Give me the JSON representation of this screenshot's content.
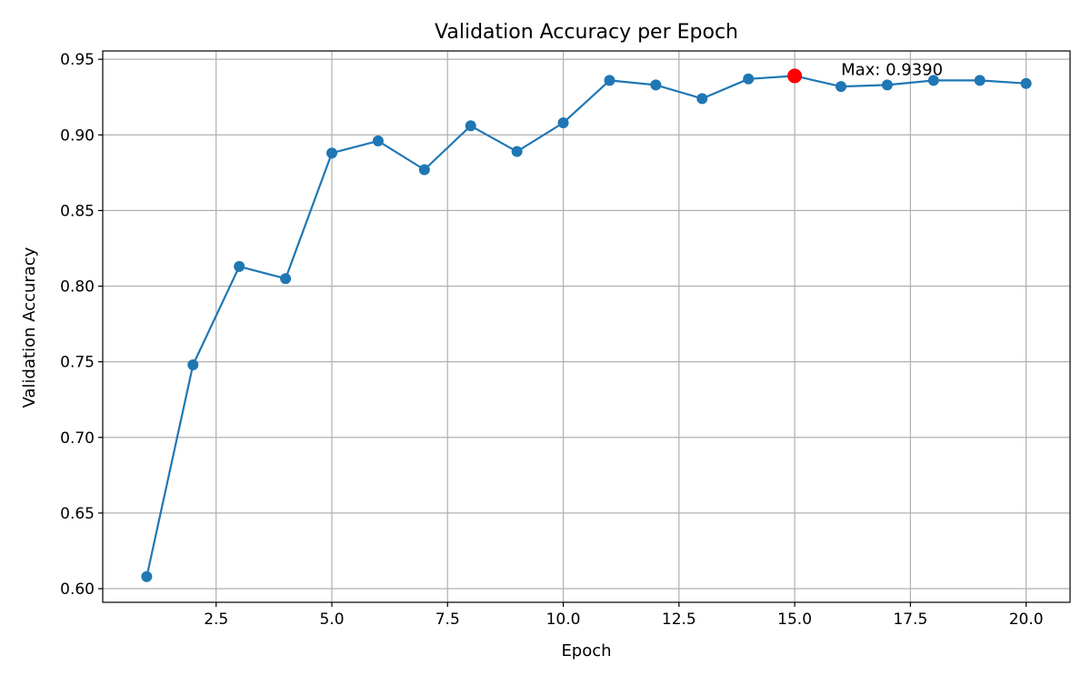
{
  "chart_data": {
    "type": "line",
    "title": "Validation Accuracy per Epoch",
    "xlabel": "Epoch",
    "ylabel": "Validation Accuracy",
    "xlim": [
      0.05,
      20.95
    ],
    "ylim": [
      0.591,
      0.9555
    ],
    "x_ticks": [
      2.5,
      5.0,
      7.5,
      10.0,
      12.5,
      15.0,
      17.5,
      20.0
    ],
    "y_ticks": [
      0.6,
      0.65,
      0.7,
      0.75,
      0.8,
      0.85,
      0.9,
      0.95
    ],
    "grid": true,
    "series": [
      {
        "color": "#1f77b4",
        "x": [
          1,
          2,
          3,
          4,
          5,
          6,
          7,
          8,
          9,
          10,
          11,
          12,
          13,
          14,
          15,
          16,
          17,
          18,
          19,
          20
        ],
        "values": [
          0.608,
          0.748,
          0.813,
          0.805,
          0.888,
          0.896,
          0.877,
          0.906,
          0.889,
          0.908,
          0.936,
          0.933,
          0.924,
          0.937,
          0.939,
          0.932,
          0.933,
          0.936,
          0.936,
          0.934
        ]
      }
    ],
    "highlight": {
      "x": 15,
      "y": 0.939,
      "color": "#ff0000",
      "label": "Max: 0.9390"
    }
  }
}
